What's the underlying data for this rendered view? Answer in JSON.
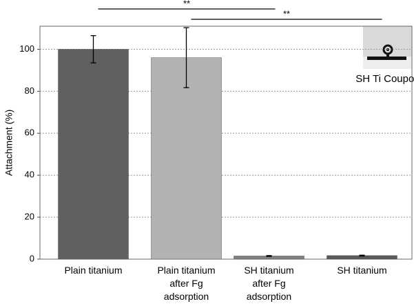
{
  "chart_data": {
    "type": "bar",
    "ylabel": "Attachment (%)",
    "categories": [
      "Plain titanium",
      "Plain titanium after Fg adsorption",
      "SH titanium after Fg adsorption",
      "SH titanium"
    ],
    "values": [
      100,
      96,
      1.5,
      1.7
    ],
    "errors": [
      6.5,
      14.3,
      0.2,
      0.2
    ],
    "colors": [
      "#606060",
      "#b2b2b2",
      "#808080",
      "#595959"
    ],
    "ylim": [
      0,
      111
    ],
    "yticks": [
      0,
      20,
      40,
      60,
      80,
      100
    ],
    "grid": true,
    "significance": [
      {
        "label": "**",
        "from": 0,
        "to": 2
      },
      {
        "label": "**",
        "from": 1,
        "to": 3
      }
    ],
    "inset_caption": "SH Ti Coupon"
  }
}
